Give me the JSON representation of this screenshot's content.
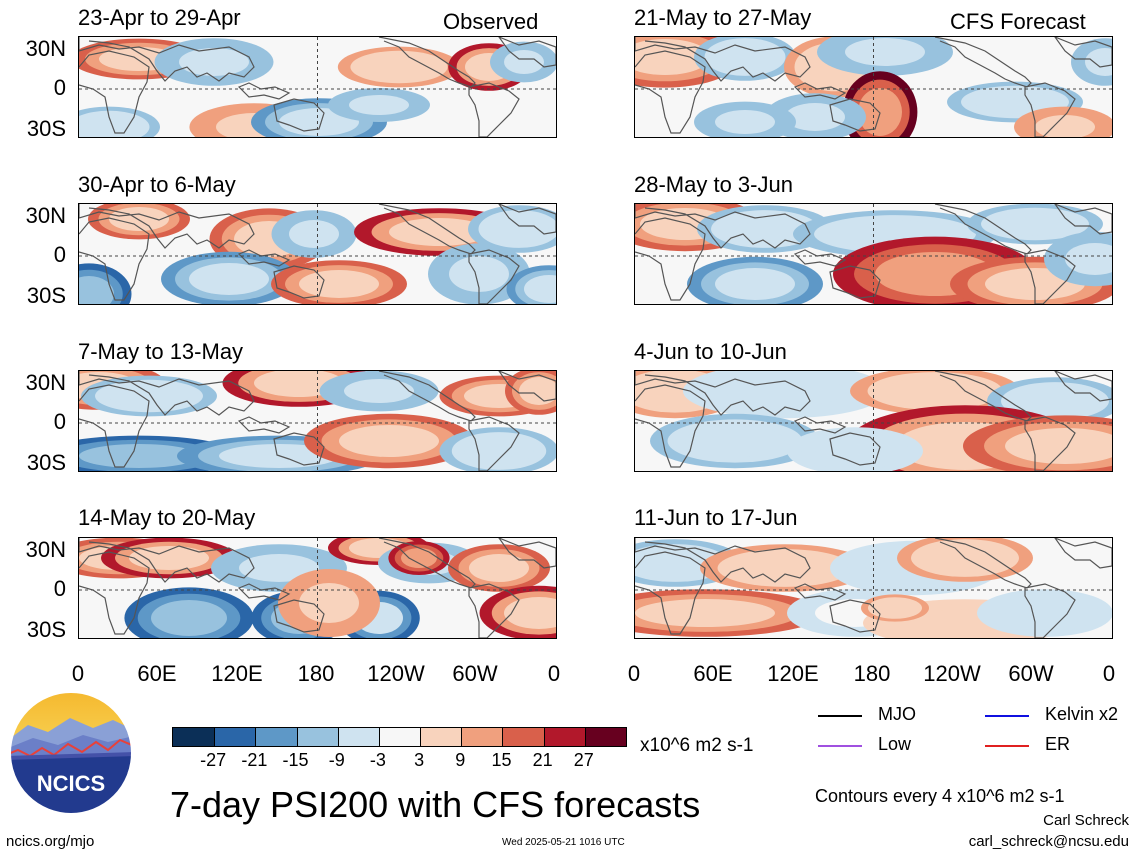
{
  "header": {
    "observed_label": "Observed",
    "forecast_label": "CFS Forecast"
  },
  "panels": {
    "left": [
      {
        "title": "23-Apr to 29-Apr"
      },
      {
        "title": "30-Apr to 6-May"
      },
      {
        "title": "7-May to 13-May"
      },
      {
        "title": "14-May to 20-May"
      }
    ],
    "right": [
      {
        "title": "21-May to 27-May"
      },
      {
        "title": "28-May to 3-Jun"
      },
      {
        "title": "4-Jun to 10-Jun"
      },
      {
        "title": "11-Jun to 17-Jun"
      }
    ]
  },
  "axes": {
    "lat_labels": [
      "30N",
      "0",
      "30S"
    ],
    "lon_labels": [
      "0",
      "60E",
      "120E",
      "180",
      "120W",
      "60W",
      "0"
    ]
  },
  "colorbar": {
    "ticks": [
      "-27",
      "-21",
      "-15",
      "-9",
      "-3",
      "3",
      "9",
      "15",
      "21",
      "27"
    ],
    "colors": [
      "#0b2f57",
      "#2a66a8",
      "#5e98c7",
      "#98c2de",
      "#cfe3f0",
      "#f7f7f7",
      "#f8d3bd",
      "#f0a07e",
      "#d9604b",
      "#b2182b",
      "#67001f"
    ],
    "units": "x10^6 m2 s-1"
  },
  "legend": {
    "items": [
      {
        "label": "MJO",
        "color": "#000000"
      },
      {
        "label": "Kelvin x2",
        "color": "#1010e0"
      },
      {
        "label": "Low",
        "color": "#a050e0"
      },
      {
        "label": "ER",
        "color": "#e02020"
      }
    ],
    "contours": "Contours every 4 x10^6 m2 s-1",
    "author": "Carl Schreck",
    "email": "carl_schreck@ncsu.edu"
  },
  "footer": {
    "main_title": "7-day PSI200 with CFS forecasts",
    "url": "ncics.org/mjo",
    "timestamp": "Wed 2025-05-21 1016 UTC"
  },
  "logo": {
    "text": "NCICS"
  },
  "blobs": [
    [
      [
        60,
        22,
        40,
        12,
        0.6
      ],
      [
        135,
        25,
        35,
        14,
        -0.5
      ],
      [
        175,
        90,
        38,
        14,
        0.45
      ],
      [
        240,
        85,
        40,
        14,
        -0.7
      ],
      [
        300,
        68,
        30,
        10,
        -0.45
      ],
      [
        320,
        30,
        36,
        12,
        0.4
      ],
      [
        410,
        30,
        24,
        14,
        0.7
      ],
      [
        445,
        25,
        20,
        12,
        -0.5
      ],
      [
        30,
        90,
        30,
        12,
        -0.4
      ]
    ],
    [
      [
        60,
        15,
        30,
        12,
        0.6
      ],
      [
        190,
        35,
        35,
        18,
        0.5
      ],
      [
        235,
        30,
        25,
        14,
        -0.5
      ],
      [
        360,
        28,
        50,
        14,
        0.7
      ],
      [
        440,
        25,
        30,
        14,
        -0.4
      ],
      [
        10,
        90,
        25,
        18,
        -0.8
      ],
      [
        150,
        75,
        40,
        16,
        -0.6
      ],
      [
        260,
        80,
        40,
        14,
        0.55
      ],
      [
        400,
        70,
        30,
        18,
        -0.45
      ],
      [
        470,
        85,
        25,
        14,
        -0.7
      ]
    ],
    [
      [
        20,
        15,
        40,
        14,
        0.6
      ],
      [
        70,
        25,
        40,
        12,
        -0.4
      ],
      [
        220,
        12,
        45,
        14,
        0.7
      ],
      [
        300,
        20,
        35,
        12,
        -0.5
      ],
      [
        420,
        25,
        35,
        12,
        0.5
      ],
      [
        460,
        20,
        20,
        14,
        0.6
      ],
      [
        60,
        85,
        60,
        12,
        -0.85
      ],
      [
        200,
        85,
        60,
        12,
        -0.6
      ],
      [
        310,
        70,
        50,
        16,
        0.65
      ],
      [
        420,
        80,
        35,
        14,
        -0.4
      ]
    ],
    [
      [
        40,
        20,
        40,
        12,
        0.55
      ],
      [
        90,
        20,
        40,
        12,
        0.7
      ],
      [
        200,
        30,
        40,
        14,
        -0.5
      ],
      [
        300,
        10,
        30,
        10,
        0.7
      ],
      [
        350,
        25,
        30,
        12,
        -0.45
      ],
      [
        340,
        20,
        18,
        10,
        0.85
      ],
      [
        420,
        30,
        30,
        14,
        0.5
      ],
      [
        110,
        80,
        38,
        18,
        -0.8
      ],
      [
        220,
        80,
        28,
        16,
        -0.9
      ],
      [
        300,
        80,
        24,
        16,
        -0.75
      ],
      [
        460,
        75,
        35,
        16,
        0.7
      ],
      [
        250,
        65,
        30,
        20,
        0.45
      ]
    ],
    [
      [
        30,
        20,
        45,
        18,
        0.6
      ],
      [
        110,
        20,
        30,
        14,
        -0.4
      ],
      [
        200,
        30,
        30,
        18,
        0.4
      ],
      [
        250,
        15,
        40,
        14,
        -0.5
      ],
      [
        245,
        75,
        22,
        24,
        0.95
      ],
      [
        180,
        80,
        30,
        14,
        -0.5
      ],
      [
        110,
        85,
        30,
        12,
        -0.5
      ],
      [
        380,
        65,
        40,
        12,
        -0.4
      ],
      [
        430,
        90,
        30,
        12,
        0.45
      ],
      [
        470,
        25,
        20,
        14,
        -0.5
      ]
    ],
    [
      [
        50,
        20,
        45,
        16,
        0.6
      ],
      [
        130,
        25,
        40,
        14,
        -0.4
      ],
      [
        260,
        30,
        60,
        14,
        -0.35
      ],
      [
        400,
        20,
        40,
        12,
        -0.4
      ],
      [
        300,
        70,
        60,
        22,
        0.8
      ],
      [
        120,
        80,
        40,
        16,
        -0.55
      ],
      [
        400,
        80,
        50,
        16,
        0.5
      ],
      [
        460,
        55,
        30,
        16,
        -0.45
      ]
    ],
    [
      [
        40,
        20,
        40,
        16,
        0.4
      ],
      [
        150,
        20,
        60,
        16,
        -0.3
      ],
      [
        300,
        20,
        50,
        14,
        0.35
      ],
      [
        420,
        30,
        40,
        14,
        -0.35
      ],
      [
        330,
        75,
        70,
        24,
        0.7
      ],
      [
        100,
        70,
        50,
        16,
        -0.35
      ],
      [
        430,
        75,
        60,
        18,
        0.6
      ],
      [
        220,
        80,
        40,
        14,
        -0.3
      ]
    ],
    [
      [
        40,
        25,
        40,
        14,
        -0.35
      ],
      [
        150,
        30,
        50,
        14,
        0.3
      ],
      [
        280,
        30,
        50,
        16,
        -0.3
      ],
      [
        330,
        20,
        40,
        14,
        0.35
      ],
      [
        70,
        75,
        70,
        14,
        0.5
      ],
      [
        220,
        75,
        40,
        14,
        -0.25
      ],
      [
        330,
        85,
        60,
        14,
        0.25
      ],
      [
        410,
        75,
        40,
        14,
        -0.3
      ],
      [
        260,
        70,
        20,
        8,
        0.4
      ]
    ]
  ]
}
